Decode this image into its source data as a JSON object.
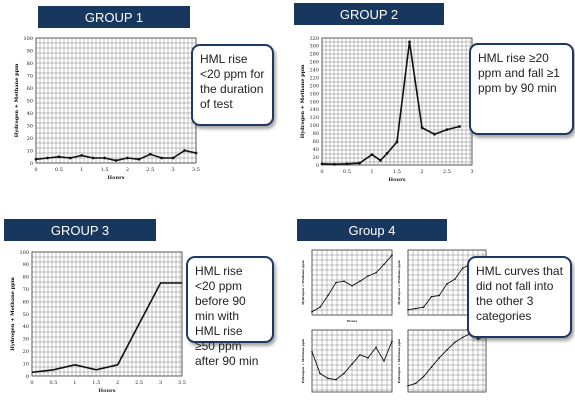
{
  "panels": [
    {
      "banner": "GROUP 1",
      "callout": "HML rise <20 ppm for the duration of test"
    },
    {
      "banner": "GROUP 2",
      "callout": "HML rise ≥20 ppm and fall ≥1 ppm by 90 min"
    },
    {
      "banner": "GROUP 3",
      "callout": "HML rise <20 ppm before 90 min with HML rise ≥50 ppm after 90 min"
    },
    {
      "banner": "Group 4",
      "callout": "HML curves that did not fall into the other 3 categories"
    }
  ],
  "chart_data": [
    {
      "type": "line",
      "ylabel": "Hydrogen + Methane ppm",
      "xlabel": "Hours",
      "xlim": [
        0,
        3.5
      ],
      "ylim": [
        0,
        100
      ],
      "xticks": [
        "0",
        "0.5",
        "1",
        "1.5",
        "2",
        "2.5",
        "3",
        "3.5"
      ],
      "yticks": [
        "0",
        "10",
        "20",
        "30",
        "40",
        "50",
        "60",
        "70",
        "80",
        "90",
        "100"
      ],
      "x": [
        0,
        0.25,
        0.5,
        0.75,
        1.0,
        1.25,
        1.5,
        1.75,
        2.0,
        2.25,
        2.5,
        2.75,
        3.0,
        3.25,
        3.5
      ],
      "y": [
        3,
        4,
        5,
        4,
        6,
        4,
        4,
        2,
        4,
        3,
        7,
        4,
        4,
        10,
        8
      ],
      "grid": true
    },
    {
      "type": "line",
      "ylabel": "Hydrogen + Methane ppm",
      "xlabel": "Hours",
      "xlim": [
        0,
        3
      ],
      "ylim": [
        0,
        330
      ],
      "xticks": [
        "0",
        "0.5",
        "1",
        "1.5",
        "2",
        "2.5",
        "3"
      ],
      "yticks": [
        "0",
        "20",
        "40",
        "60",
        "80",
        "100",
        "120",
        "140",
        "160",
        "180",
        "200",
        "220",
        "240",
        "260",
        "280",
        "300",
        "320"
      ],
      "x": [
        0,
        0.25,
        0.5,
        0.75,
        1.0,
        1.17,
        1.3,
        1.5,
        1.75,
        2.0,
        2.25,
        2.5,
        2.75
      ],
      "y": [
        3,
        2,
        3,
        5,
        27,
        12,
        30,
        60,
        320,
        97,
        80,
        92,
        100
      ],
      "grid": true
    },
    {
      "type": "line",
      "ylabel": "Hydrogen + Methane ppm",
      "xlabel": "Hours",
      "xlim": [
        0,
        3.5
      ],
      "ylim": [
        0,
        100
      ],
      "xticks": [
        "0",
        "0.5",
        "1",
        "1.5",
        "2",
        "2.5",
        "3",
        "3.5"
      ],
      "yticks": [
        "0",
        "10",
        "20",
        "30",
        "40",
        "50",
        "60",
        "70",
        "80",
        "90",
        "100"
      ],
      "x": [
        0,
        0.5,
        1.0,
        1.5,
        2.0,
        2.5,
        3.0,
        3.5
      ],
      "y": [
        3,
        5,
        9,
        5,
        9,
        42,
        75,
        75
      ],
      "grid": true
    },
    {
      "type": "line",
      "ylabel": "Hydrogen + Methane ppm",
      "xlabel": "Hours",
      "x": [
        0,
        0.5,
        1,
        1.5,
        2,
        2.5,
        3,
        3.5,
        4,
        4.5,
        5
      ],
      "y": [
        5,
        12,
        30,
        50,
        52,
        45,
        52,
        60,
        65,
        78,
        92
      ],
      "grid": true
    },
    {
      "type": "line",
      "ylabel": "Hydrogen + Methane ppm",
      "x": [
        0,
        0.5,
        1,
        1.5,
        2,
        2.5,
        3,
        3.5,
        4,
        4.5,
        5
      ],
      "y": [
        8,
        10,
        12,
        28,
        30,
        48,
        55,
        72,
        78,
        42,
        70
      ],
      "grid": true
    },
    {
      "type": "line",
      "ylabel": "Hydrogen + Methane ppm",
      "x": [
        0,
        0.5,
        1,
        1.5,
        2,
        2.5,
        3,
        3.5,
        4,
        4.5,
        5
      ],
      "y": [
        65,
        30,
        22,
        20,
        30,
        45,
        60,
        55,
        72,
        50,
        82
      ],
      "grid": true
    },
    {
      "type": "line",
      "ylabel": "Hydrogen + Methane ppm",
      "x": [
        0,
        0.5,
        1,
        1.5,
        2,
        2.5,
        3,
        3.5,
        4,
        4.5,
        5
      ],
      "y": [
        10,
        14,
        25,
        40,
        55,
        68,
        80,
        88,
        94,
        85,
        92
      ],
      "grid": true
    }
  ]
}
